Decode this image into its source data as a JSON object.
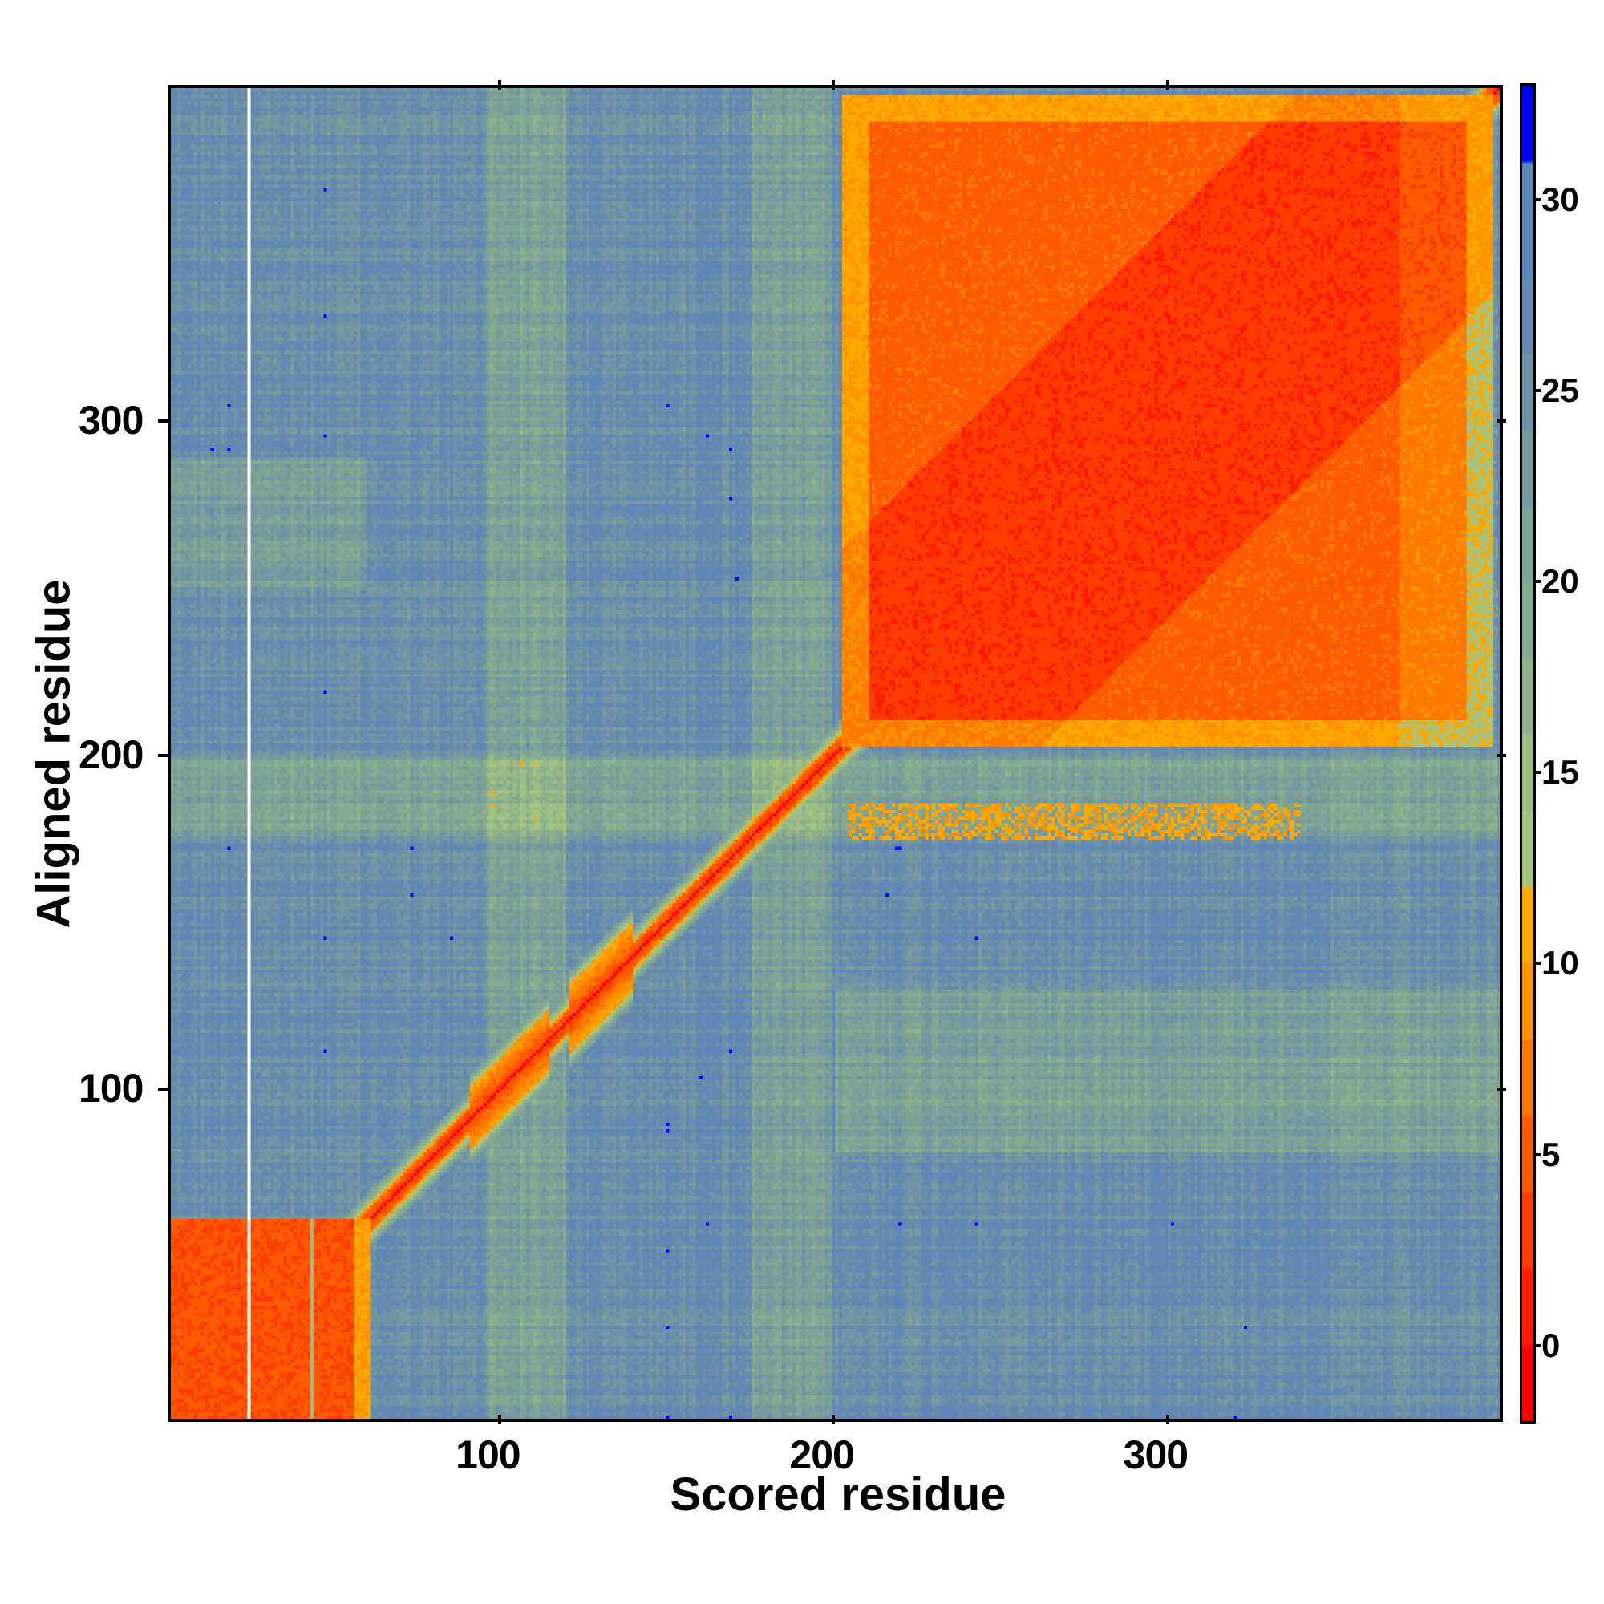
{
  "chart_data": {
    "type": "heatmap",
    "title": "",
    "xlabel": "Scored residue",
    "ylabel": "Aligned residue",
    "xlim": [
      1,
      400
    ],
    "ylim": [
      1,
      400
    ],
    "x_ticks": [
      {
        "value": 100,
        "label": "100"
      },
      {
        "value": 200,
        "label": "200"
      },
      {
        "value": 300,
        "label": "300"
      }
    ],
    "y_ticks": [
      {
        "value": 100,
        "label": "100"
      },
      {
        "value": 200,
        "label": "200"
      },
      {
        "value": 300,
        "label": "300"
      }
    ],
    "colorbar": {
      "range": [
        -2,
        33
      ],
      "ticks": [
        {
          "value": 0,
          "label": "0"
        },
        {
          "value": 5,
          "label": "5"
        },
        {
          "value": 10,
          "label": "10"
        },
        {
          "value": 15,
          "label": "15"
        },
        {
          "value": 20,
          "label": "20"
        },
        {
          "value": 25,
          "label": "25"
        },
        {
          "value": 30,
          "label": "30"
        }
      ],
      "bands": [
        {
          "from": -2,
          "to": 0,
          "color": "#ff0000"
        },
        {
          "from": 0,
          "to": 2,
          "color": "#ff1a00"
        },
        {
          "from": 2,
          "to": 4,
          "color": "#ff3c00"
        },
        {
          "from": 4,
          "to": 6,
          "color": "#ff5a00"
        },
        {
          "from": 6,
          "to": 8,
          "color": "#ff7800"
        },
        {
          "from": 8,
          "to": 10,
          "color": "#ff9400"
        },
        {
          "from": 10,
          "to": 12,
          "color": "#ffaa00"
        },
        {
          "from": 12,
          "to": 14,
          "color": "#a8c47c"
        },
        {
          "from": 14,
          "to": 16,
          "color": "#9dbc84"
        },
        {
          "from": 16,
          "to": 18,
          "color": "#90b28a"
        },
        {
          "from": 18,
          "to": 20,
          "color": "#86aa90"
        },
        {
          "from": 20,
          "to": 22,
          "color": "#7ea296"
        },
        {
          "from": 22,
          "to": 24,
          "color": "#769a9e"
        },
        {
          "from": 24,
          "to": 26,
          "color": "#6e92a6"
        },
        {
          "from": 26,
          "to": 28,
          "color": "#668aae"
        },
        {
          "from": 28,
          "to": 31,
          "color": "#5e86b8"
        },
        {
          "from": 31,
          "to": 33,
          "color": "#0000ff"
        }
      ]
    },
    "background_value": 26,
    "diagonal_value": 0,
    "domains": [
      {
        "from": 1,
        "to": 60,
        "value": 3
      },
      {
        "from": 203,
        "to": 398,
        "value": 4
      }
    ],
    "features": [
      {
        "desc": "off-diagonal band",
        "x_range": [
          205,
          340
        ],
        "y_range": [
          175,
          185
        ],
        "value": 9
      },
      {
        "desc": "diagonal widening",
        "x_range": [
          90,
          140
        ],
        "value": 4
      }
    ]
  }
}
